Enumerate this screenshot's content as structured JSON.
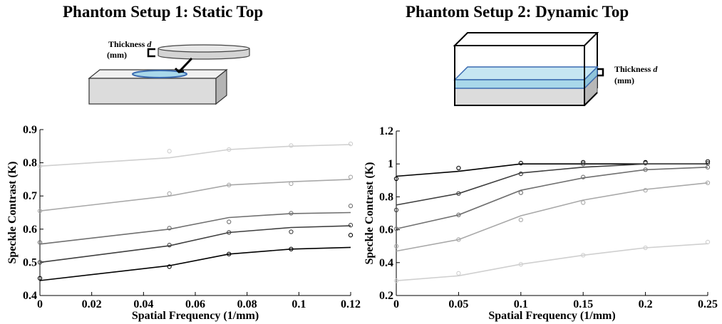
{
  "titles": {
    "left": "Phantom Setup 1: Static Top",
    "right": "Phantom Setup 2: Dynamic Top"
  },
  "diagram_labels": {
    "thickness": "Thickness d",
    "unit": "(mm)"
  },
  "colors": {
    "black": "#000000",
    "dark_gray": "#3f3f3f",
    "mid_gray": "#707070",
    "light_gray": "#a8a8a8",
    "lightest_gray": "#cfcfcf",
    "liquid": "#a9d8ea",
    "block": "#dcdcdc"
  },
  "chart_data": [
    {
      "type": "scatter",
      "title": "",
      "xlabel": "Spatial Frequency (1/mm)",
      "ylabel": "Speckle Contrast (K)",
      "xlim": [
        0,
        0.12
      ],
      "ylim": [
        0.4,
        0.9
      ],
      "xticks": [
        "0",
        "0.02",
        "0.04",
        "0.06",
        "0.08",
        "0.1",
        "0.12"
      ],
      "yticks": [
        "0.4",
        "0.5",
        "0.6",
        "0.7",
        "0.8",
        "0.9"
      ],
      "series": [
        {
          "color": "#cfcfcf",
          "points": [
            [
              0,
              0.79
            ],
            [
              0.05,
              0.835
            ],
            [
              0.073,
              0.84
            ],
            [
              0.097,
              0.852
            ],
            [
              0.12,
              0.857
            ]
          ],
          "fit": [
            [
              0,
              0.79
            ],
            [
              0.05,
              0.815
            ],
            [
              0.073,
              0.84
            ],
            [
              0.097,
              0.85
            ],
            [
              0.12,
              0.855
            ]
          ]
        },
        {
          "color": "#a8a8a8",
          "points": [
            [
              0,
              0.655
            ],
            [
              0.05,
              0.707
            ],
            [
              0.073,
              0.733
            ],
            [
              0.097,
              0.737
            ],
            [
              0.12,
              0.757
            ]
          ],
          "fit": [
            [
              0,
              0.655
            ],
            [
              0.05,
              0.7
            ],
            [
              0.073,
              0.733
            ],
            [
              0.097,
              0.743
            ],
            [
              0.12,
              0.75
            ]
          ]
        },
        {
          "color": "#707070",
          "points": [
            [
              0,
              0.56
            ],
            [
              0.05,
              0.603
            ],
            [
              0.073,
              0.622
            ],
            [
              0.097,
              0.648
            ],
            [
              0.12,
              0.67
            ]
          ],
          "fit": [
            [
              0,
              0.555
            ],
            [
              0.05,
              0.6
            ],
            [
              0.073,
              0.635
            ],
            [
              0.097,
              0.647
            ],
            [
              0.12,
              0.65
            ]
          ]
        },
        {
          "color": "#3f3f3f",
          "points": [
            [
              0,
              0.5
            ],
            [
              0.05,
              0.552
            ],
            [
              0.073,
              0.59
            ],
            [
              0.097,
              0.592
            ],
            [
              0.12,
              0.612
            ]
          ],
          "fit": [
            [
              0,
              0.5
            ],
            [
              0.05,
              0.55
            ],
            [
              0.073,
              0.59
            ],
            [
              0.097,
              0.605
            ],
            [
              0.12,
              0.61
            ]
          ]
        },
        {
          "color": "#000000",
          "points": [
            [
              0,
              0.452
            ],
            [
              0.05,
              0.487
            ],
            [
              0.073,
              0.525
            ],
            [
              0.097,
              0.54
            ],
            [
              0.12,
              0.582
            ]
          ],
          "fit": [
            [
              0,
              0.445
            ],
            [
              0.05,
              0.49
            ],
            [
              0.073,
              0.525
            ],
            [
              0.097,
              0.54
            ],
            [
              0.12,
              0.545
            ]
          ]
        }
      ]
    },
    {
      "type": "scatter",
      "title": "",
      "xlabel": "Spatial Frequency (1/mm)",
      "ylabel": "Speckle Contrast (K)",
      "xlim": [
        0,
        0.25
      ],
      "ylim": [
        0.2,
        1.2
      ],
      "xticks": [
        "0",
        "0.05",
        "0.1",
        "0.15",
        "0.2",
        "0.25"
      ],
      "yticks": [
        "0.2",
        "0.4",
        "0.6",
        "0.8",
        "1",
        "1.2"
      ],
      "series": [
        {
          "color": "#000000",
          "points": [
            [
              0,
              0.91
            ],
            [
              0.05,
              0.975
            ],
            [
              0.1,
              1.005
            ],
            [
              0.15,
              1.01
            ],
            [
              0.2,
              1.01
            ],
            [
              0.25,
              1.015
            ]
          ],
          "fit": [
            [
              0,
              0.925
            ],
            [
              0.05,
              0.955
            ],
            [
              0.1,
              1.0
            ],
            [
              0.15,
              1.0
            ],
            [
              0.2,
              1.0
            ],
            [
              0.25,
              1.0
            ]
          ]
        },
        {
          "color": "#3f3f3f",
          "points": [
            [
              0,
              0.72
            ],
            [
              0.05,
              0.82
            ],
            [
              0.1,
              0.94
            ],
            [
              0.15,
              1.0
            ],
            [
              0.2,
              1.005
            ],
            [
              0.25,
              1.005
            ]
          ],
          "fit": [
            [
              0,
              0.75
            ],
            [
              0.05,
              0.82
            ],
            [
              0.1,
              0.945
            ],
            [
              0.15,
              0.98
            ],
            [
              0.2,
              1.0
            ],
            [
              0.25,
              1.0
            ]
          ]
        },
        {
          "color": "#707070",
          "points": [
            [
              0,
              0.605
            ],
            [
              0.05,
              0.69
            ],
            [
              0.1,
              0.825
            ],
            [
              0.15,
              0.92
            ],
            [
              0.2,
              0.965
            ],
            [
              0.25,
              0.98
            ]
          ],
          "fit": [
            [
              0,
              0.605
            ],
            [
              0.05,
              0.69
            ],
            [
              0.1,
              0.84
            ],
            [
              0.15,
              0.915
            ],
            [
              0.2,
              0.965
            ],
            [
              0.25,
              0.98
            ]
          ]
        },
        {
          "color": "#a8a8a8",
          "points": [
            [
              0,
              0.5
            ],
            [
              0.05,
              0.54
            ],
            [
              0.1,
              0.66
            ],
            [
              0.15,
              0.765
            ],
            [
              0.2,
              0.84
            ],
            [
              0.25,
              0.885
            ]
          ],
          "fit": [
            [
              0,
              0.47
            ],
            [
              0.05,
              0.54
            ],
            [
              0.1,
              0.685
            ],
            [
              0.15,
              0.78
            ],
            [
              0.2,
              0.845
            ],
            [
              0.25,
              0.885
            ]
          ]
        },
        {
          "color": "#cfcfcf",
          "points": [
            [
              0,
              0.29
            ],
            [
              0.05,
              0.335
            ],
            [
              0.1,
              0.39
            ],
            [
              0.15,
              0.445
            ],
            [
              0.2,
              0.49
            ],
            [
              0.25,
              0.525
            ]
          ],
          "fit": [
            [
              0,
              0.29
            ],
            [
              0.05,
              0.32
            ],
            [
              0.1,
              0.39
            ],
            [
              0.15,
              0.445
            ],
            [
              0.2,
              0.49
            ],
            [
              0.25,
              0.515
            ]
          ]
        }
      ]
    }
  ]
}
